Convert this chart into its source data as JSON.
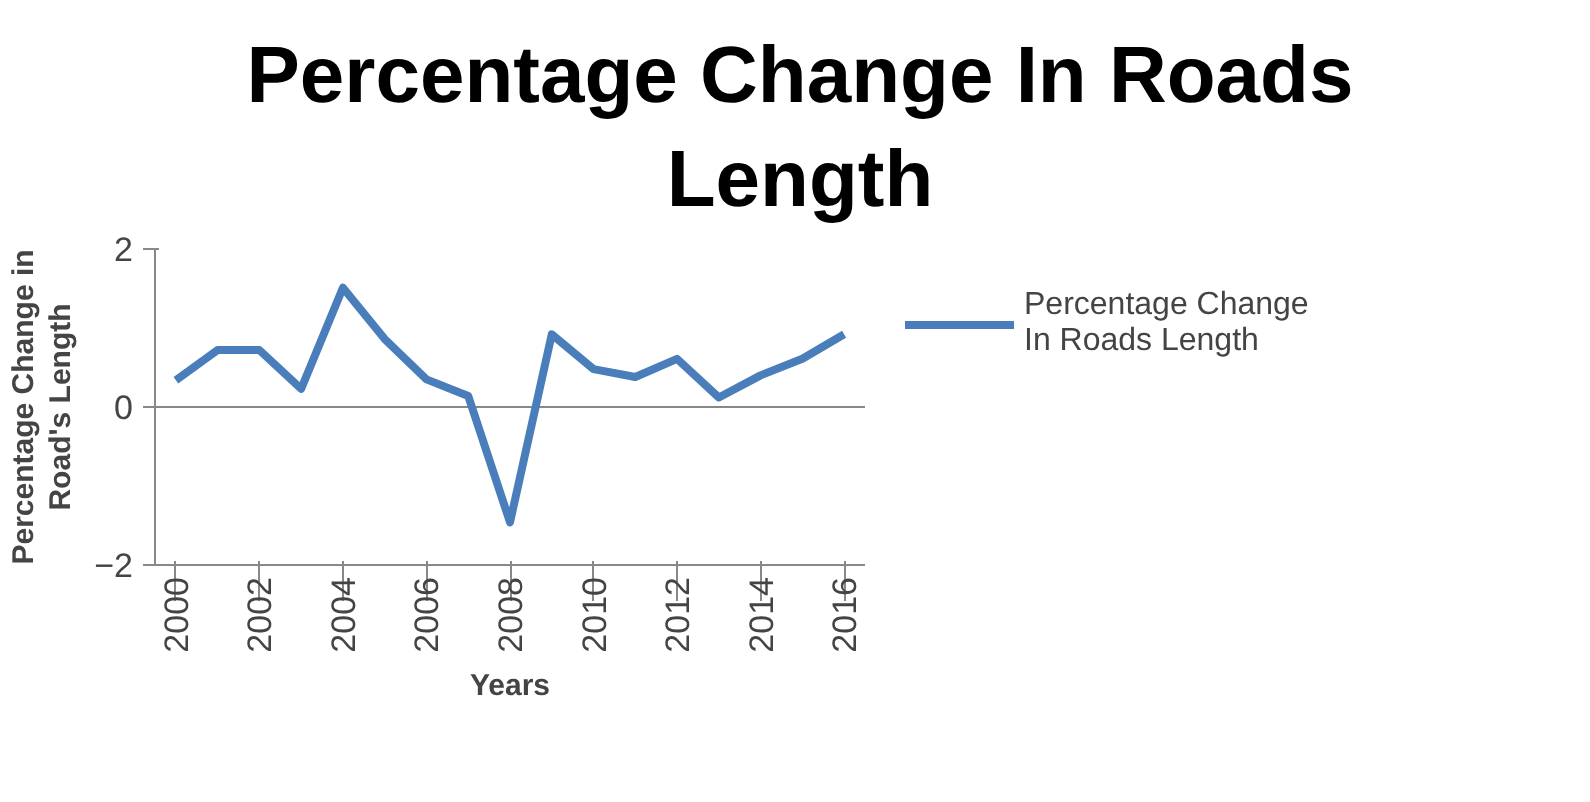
{
  "chart_data": {
    "type": "line",
    "title": "Percentage Change In Roads Length",
    "xlabel": "Years",
    "ylabel": "Percentage Change in Road's Length",
    "x": [
      2000,
      2001,
      2002,
      2003,
      2004,
      2005,
      2006,
      2007,
      2008,
      2009,
      2010,
      2011,
      2012,
      2013,
      2014,
      2015,
      2016
    ],
    "series": [
      {
        "name": "Percentage Change In Roads Length",
        "color": "#4a7ebb",
        "values": [
          0.34,
          0.72,
          0.72,
          0.23,
          1.51,
          0.86,
          0.35,
          0.14,
          -1.46,
          0.92,
          0.48,
          0.38,
          0.61,
          0.12,
          0.4,
          0.61,
          0.92
        ]
      }
    ],
    "xlim": [
      1999.5,
      2016.5
    ],
    "xticks": [
      2000,
      2002,
      2004,
      2006,
      2008,
      2010,
      2012,
      2014,
      2016
    ],
    "ylim": [
      -2,
      2
    ],
    "yticks": [
      -2,
      0,
      2
    ],
    "grid": "y",
    "legend": "right",
    "marker": "none",
    "line_style": "solid"
  }
}
